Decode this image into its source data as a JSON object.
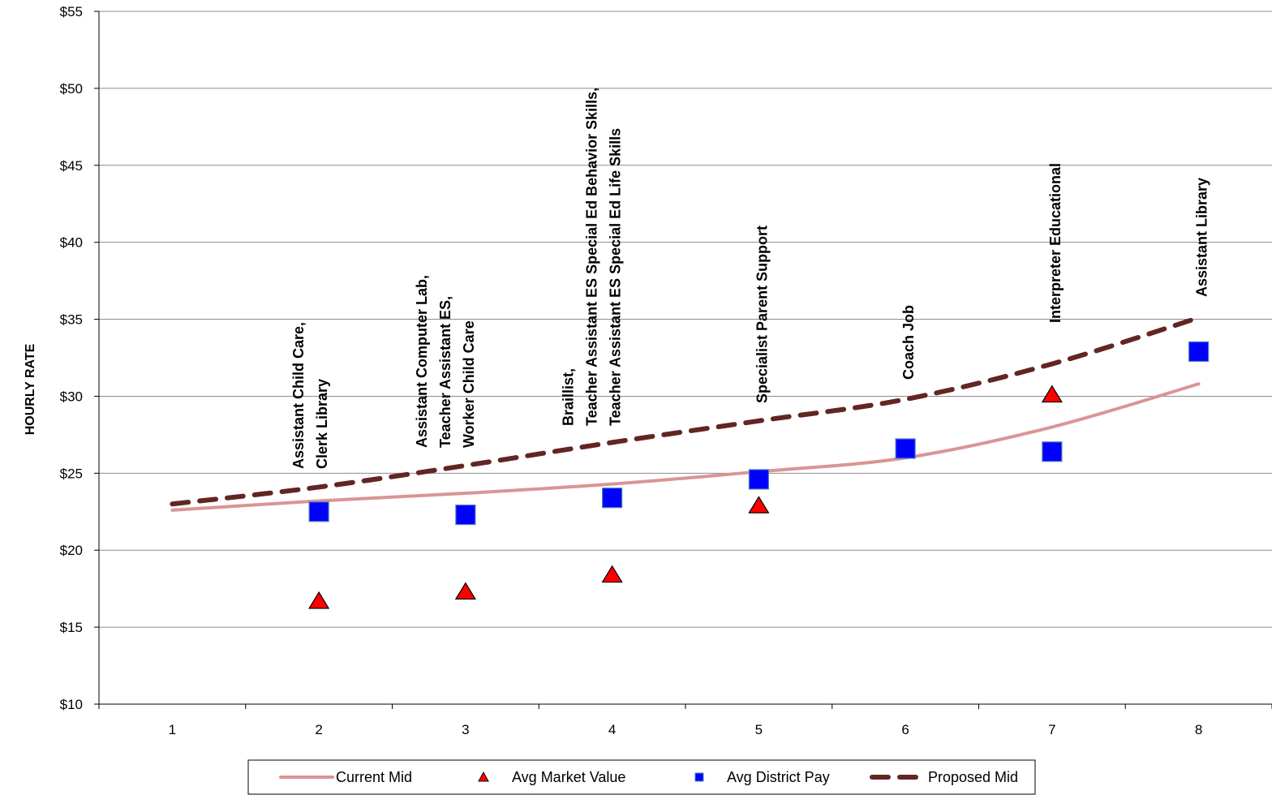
{
  "chart_data": {
    "type": "line",
    "title": "",
    "xlabel": "",
    "ylabel": "HOURLY RATE",
    "x": [
      1,
      2,
      3,
      4,
      5,
      6,
      7,
      8
    ],
    "xlim": [
      0.5,
      8.5
    ],
    "ylim": [
      10,
      55
    ],
    "y_ticks": [
      10,
      15,
      20,
      25,
      30,
      35,
      40,
      45,
      50,
      55
    ],
    "y_tick_labels": [
      "$10",
      "$15",
      "$20",
      "$25",
      "$30",
      "$35",
      "$40",
      "$45",
      "$50",
      "$55"
    ],
    "x_tick_labels": [
      "1",
      "2",
      "3",
      "4",
      "5",
      "6",
      "7",
      "8"
    ],
    "grid": "horizontal",
    "legend_position": "bottom",
    "series": [
      {
        "name": "Current Mid",
        "kind": "line",
        "color": "#d99594",
        "style": "solid",
        "x": [
          1,
          2,
          3,
          4,
          5,
          6,
          7,
          8
        ],
        "values": [
          22.6,
          23.2,
          23.7,
          24.3,
          25.1,
          26.0,
          28.0,
          30.8
        ]
      },
      {
        "name": "Avg Market Value",
        "kind": "scatter",
        "marker": "triangle",
        "color": "#ff0000",
        "x": [
          2,
          3,
          4,
          5,
          7
        ],
        "values": [
          16.7,
          17.3,
          18.4,
          22.9,
          30.1
        ]
      },
      {
        "name": "Avg District Pay",
        "kind": "scatter",
        "marker": "square",
        "color": "#0000ff",
        "x": [
          2,
          3,
          4,
          5,
          6,
          7,
          8
        ],
        "values": [
          22.5,
          22.3,
          23.4,
          24.6,
          26.6,
          26.4,
          32.9
        ]
      },
      {
        "name": "Proposed Mid",
        "kind": "line",
        "color": "#632523",
        "style": "dashed",
        "x": [
          1,
          2,
          3,
          4,
          5,
          6,
          7,
          8
        ],
        "values": [
          23.0,
          24.1,
          25.5,
          27.0,
          28.4,
          29.8,
          32.1,
          35.1
        ]
      }
    ],
    "annotations": [
      {
        "x": 2,
        "lines": [
          "Assistant Child Care,",
          "Clerk Library"
        ]
      },
      {
        "x": 3,
        "lines": [
          "Assistant Computer Lab,",
          "Teacher Assistant ES,",
          "Worker Child Care"
        ]
      },
      {
        "x": 4,
        "lines": [
          "Braillist,",
          "Teacher Assistant ES Special Ed Behavior Skills,",
          "Teacher Assistant ES Special Ed Life Skills"
        ]
      },
      {
        "x": 5,
        "lines": [
          "Specialist Parent Support"
        ]
      },
      {
        "x": 6,
        "lines": [
          "Coach Job"
        ]
      },
      {
        "x": 7,
        "lines": [
          "Interpreter Educational"
        ]
      },
      {
        "x": 8,
        "lines": [
          "Assistant Library"
        ]
      }
    ]
  }
}
